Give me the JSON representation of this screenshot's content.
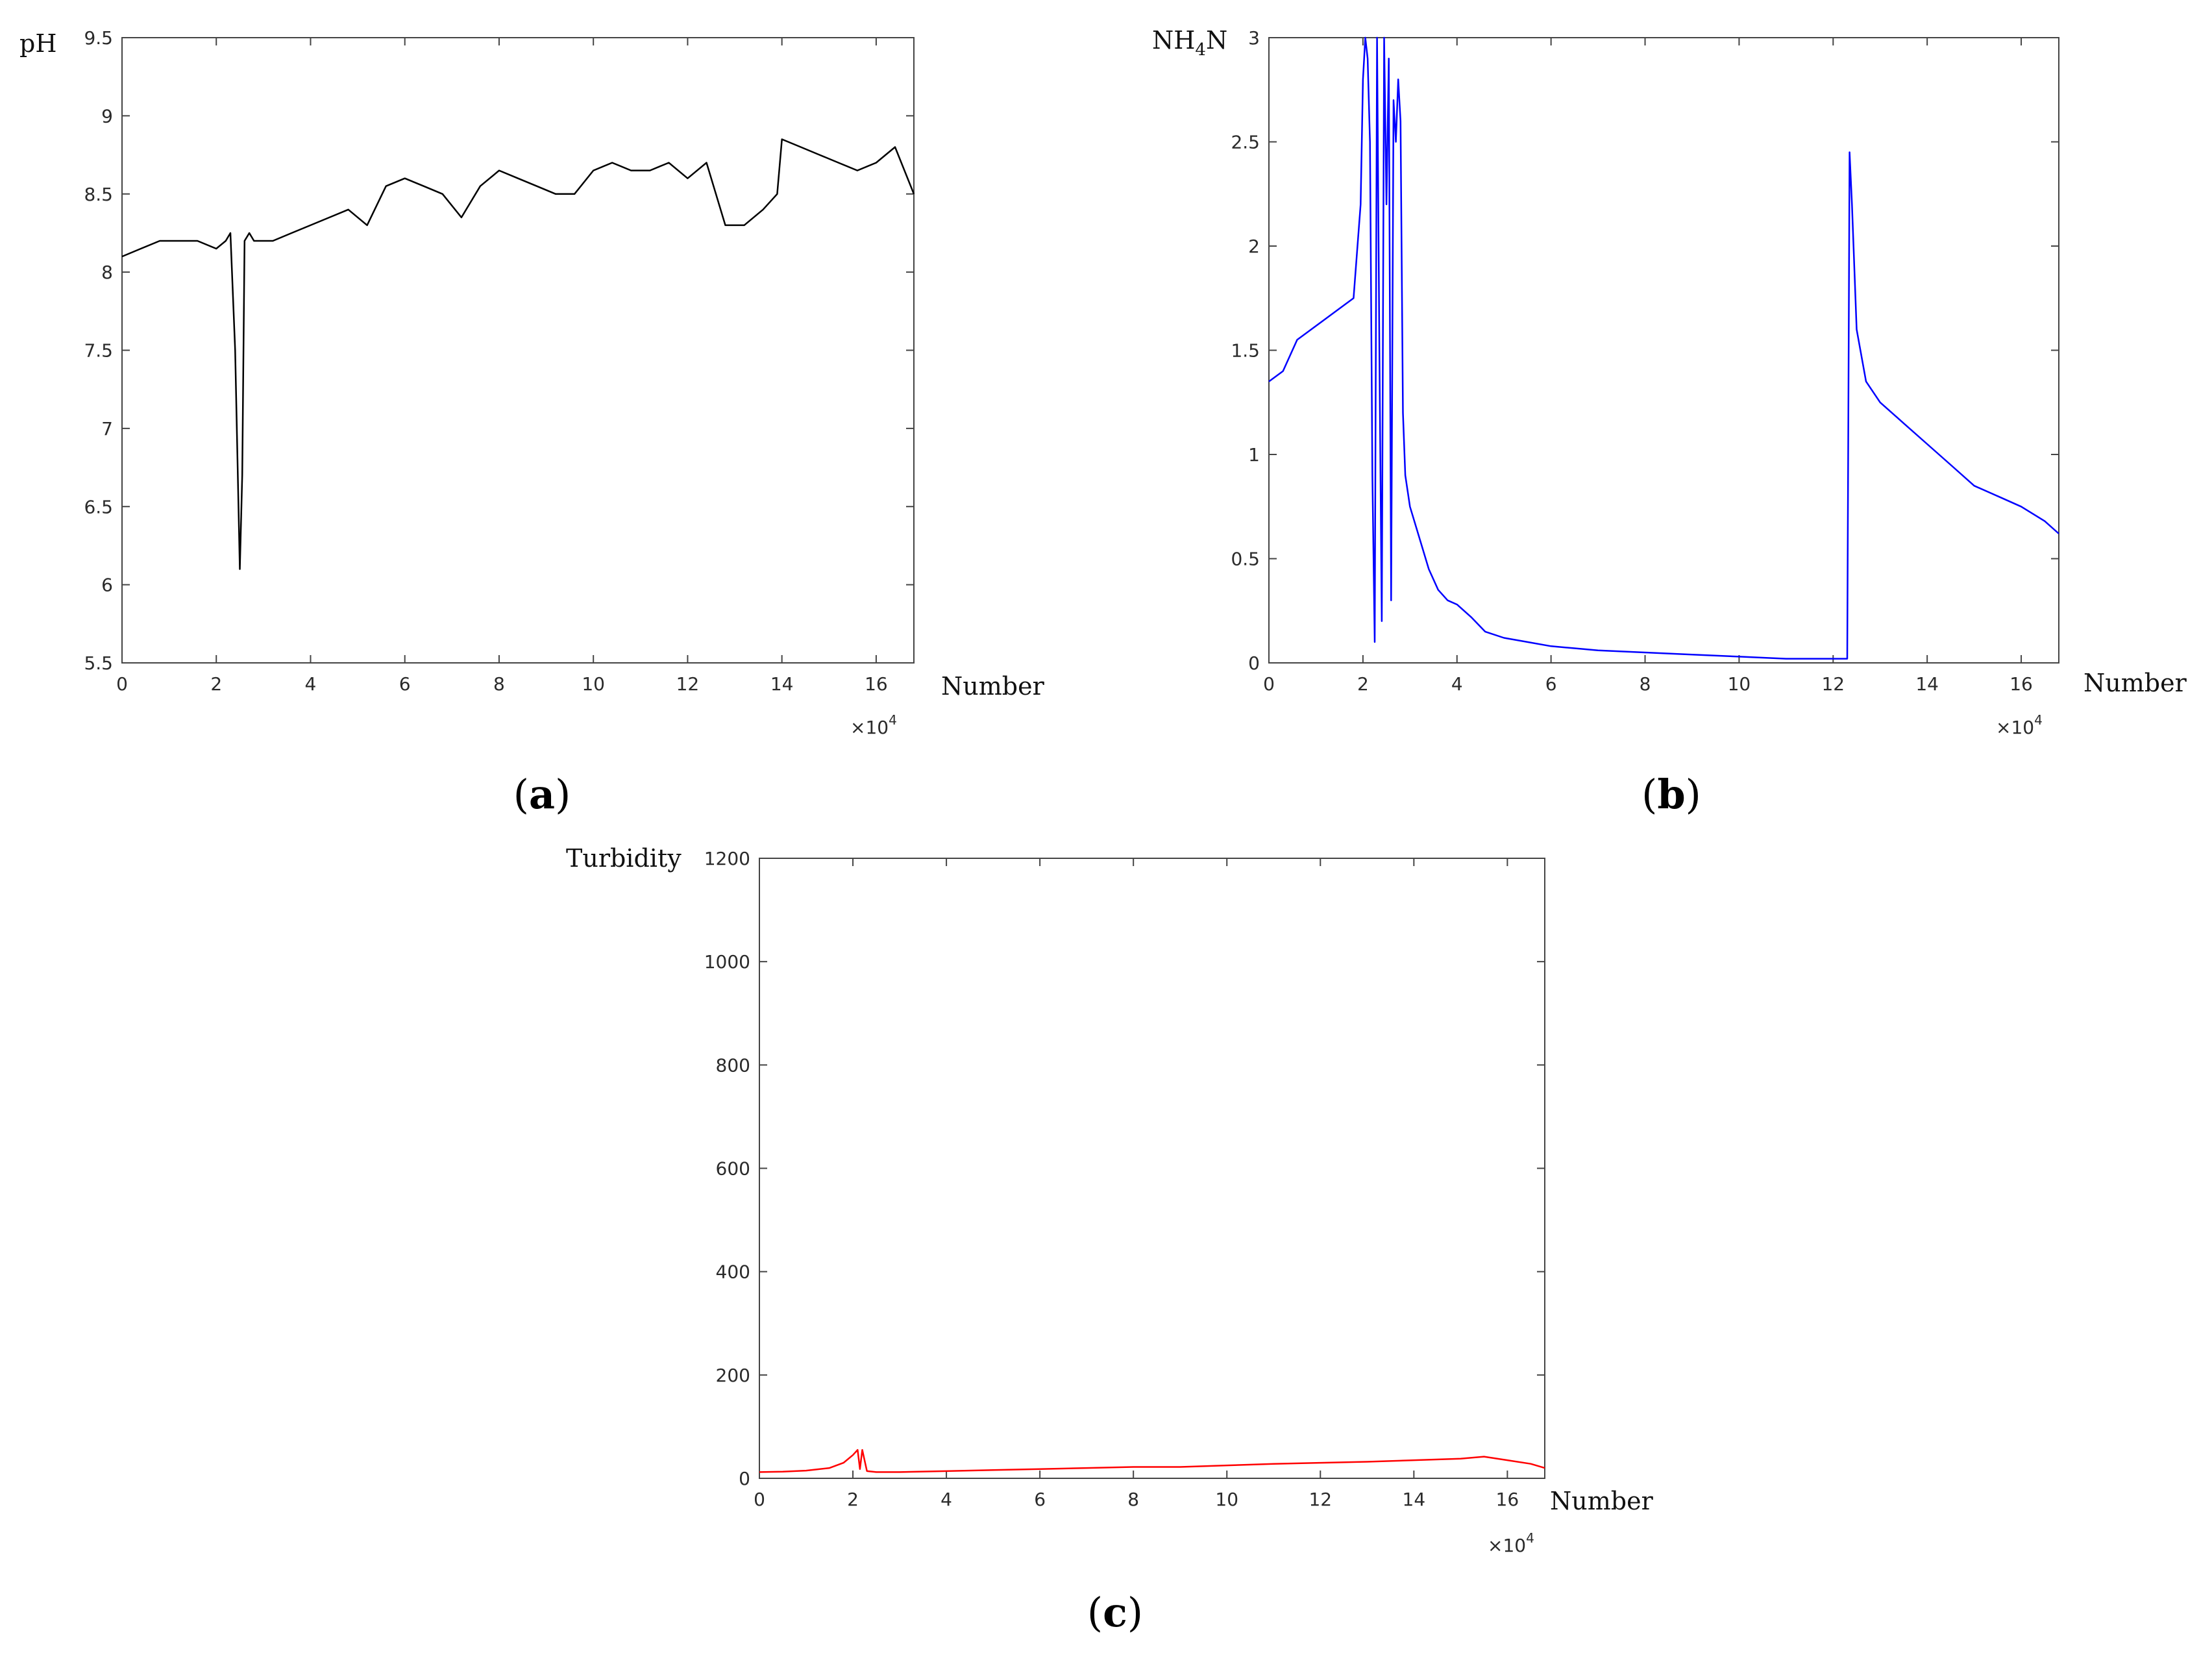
{
  "chart_data": [
    {
      "id": "a",
      "type": "line",
      "panel_label": "a",
      "ylabel": "pH",
      "xlabel": "Number",
      "x_multiplier": "×10",
      "x_exponent": "4",
      "xlim": [
        0,
        16.8
      ],
      "ylim": [
        5.5,
        9.5
      ],
      "xticks": [
        0,
        2,
        4,
        6,
        8,
        10,
        12,
        14,
        16
      ],
      "xtick_labels": [
        "0",
        "2",
        "4",
        "6",
        "8",
        "10",
        "12",
        "14",
        "16"
      ],
      "yticks": [
        5.5,
        6,
        6.5,
        7,
        7.5,
        8,
        8.5,
        9,
        9.5
      ],
      "ytick_labels": [
        "5.5",
        "6",
        "6.5",
        "7",
        "7.5",
        "8",
        "8.5",
        "9",
        "9.5"
      ],
      "color": "#000000",
      "series": [
        {
          "name": "pH",
          "x": [
            0,
            0.4,
            0.8,
            1.2,
            1.6,
            2.0,
            2.2,
            2.3,
            2.4,
            2.45,
            2.5,
            2.55,
            2.6,
            2.7,
            2.8,
            3.2,
            3.6,
            4.0,
            4.4,
            4.8,
            5.2,
            5.6,
            6.0,
            6.4,
            6.8,
            7.2,
            7.6,
            8.0,
            8.4,
            8.8,
            9.2,
            9.6,
            10.0,
            10.4,
            10.8,
            11.2,
            11.6,
            12.0,
            12.4,
            12.8,
            13.2,
            13.6,
            13.9,
            14.0,
            14.4,
            14.8,
            15.2,
            15.6,
            16.0,
            16.4,
            16.8
          ],
          "y": [
            8.1,
            8.15,
            8.2,
            8.2,
            8.2,
            8.15,
            8.2,
            8.25,
            7.5,
            6.8,
            6.1,
            6.7,
            8.2,
            8.25,
            8.2,
            8.2,
            8.25,
            8.3,
            8.35,
            8.4,
            8.3,
            8.55,
            8.6,
            8.55,
            8.5,
            8.35,
            8.55,
            8.65,
            8.6,
            8.55,
            8.5,
            8.5,
            8.65,
            8.7,
            8.65,
            8.65,
            8.7,
            8.6,
            8.7,
            8.3,
            8.3,
            8.4,
            8.5,
            8.85,
            8.8,
            8.75,
            8.7,
            8.65,
            8.7,
            8.8,
            8.5
          ]
        }
      ]
    },
    {
      "id": "b",
      "type": "line",
      "panel_label": "b",
      "ylabel": "NH",
      "ylabel_sub": "4",
      "ylabel_tail": "N",
      "xlabel": "Number",
      "x_multiplier": "×10",
      "x_exponent": "4",
      "xlim": [
        0,
        16.8
      ],
      "ylim": [
        0,
        3
      ],
      "xticks": [
        0,
        2,
        4,
        6,
        8,
        10,
        12,
        14,
        16
      ],
      "xtick_labels": [
        "0",
        "2",
        "4",
        "6",
        "8",
        "10",
        "12",
        "14",
        "16"
      ],
      "yticks": [
        0,
        0.5,
        1,
        1.5,
        2,
        2.5,
        3
      ],
      "ytick_labels": [
        "0",
        "0.5",
        "1",
        "1.5",
        "2",
        "2.5",
        "3"
      ],
      "color": "#0000ff",
      "series": [
        {
          "name": "NH4N",
          "x": [
            0,
            0.3,
            0.6,
            0.9,
            1.2,
            1.5,
            1.8,
            1.95,
            2.0,
            2.05,
            2.1,
            2.15,
            2.2,
            2.25,
            2.3,
            2.35,
            2.4,
            2.45,
            2.5,
            2.55,
            2.6,
            2.65,
            2.7,
            2.75,
            2.8,
            2.85,
            2.9,
            3.0,
            3.2,
            3.4,
            3.6,
            3.8,
            4.0,
            4.3,
            4.6,
            5.0,
            5.5,
            6.0,
            6.5,
            7.0,
            8.0,
            9.0,
            10.0,
            11.0,
            12.0,
            12.3,
            12.35,
            12.4,
            12.5,
            12.7,
            13.0,
            13.5,
            14.0,
            14.5,
            15.0,
            15.5,
            16.0,
            16.5,
            16.8
          ],
          "y": [
            1.35,
            1.4,
            1.55,
            1.6,
            1.65,
            1.7,
            1.75,
            2.2,
            2.8,
            3.0,
            2.9,
            2.5,
            0.9,
            0.1,
            3.0,
            1.5,
            0.2,
            3.0,
            2.2,
            2.9,
            0.3,
            2.7,
            2.5,
            2.8,
            2.6,
            1.2,
            0.9,
            0.75,
            0.6,
            0.45,
            0.35,
            0.3,
            0.28,
            0.22,
            0.15,
            0.12,
            0.1,
            0.08,
            0.07,
            0.06,
            0.05,
            0.04,
            0.03,
            0.02,
            0.02,
            0.02,
            2.45,
            2.2,
            1.6,
            1.35,
            1.25,
            1.15,
            1.05,
            0.95,
            0.85,
            0.8,
            0.75,
            0.68,
            0.62
          ]
        }
      ]
    },
    {
      "id": "c",
      "type": "line",
      "panel_label": "c",
      "ylabel": "Turbidity",
      "xlabel": "Number",
      "x_multiplier": "×10",
      "x_exponent": "4",
      "xlim": [
        0,
        16.8
      ],
      "ylim": [
        0,
        1200
      ],
      "xticks": [
        0,
        2,
        4,
        6,
        8,
        10,
        12,
        14,
        16
      ],
      "xtick_labels": [
        "0",
        "2",
        "4",
        "6",
        "8",
        "10",
        "12",
        "14",
        "16"
      ],
      "yticks": [
        0,
        200,
        400,
        600,
        800,
        1000,
        1200
      ],
      "ytick_labels": [
        "0",
        "200",
        "400",
        "600",
        "800",
        "1000",
        "1200"
      ],
      "color": "#ff0000",
      "series": [
        {
          "name": "Turbidity",
          "x": [
            0,
            0.5,
            1.0,
            1.5,
            1.8,
            2.0,
            2.1,
            2.15,
            2.2,
            2.3,
            2.5,
            3.0,
            4.0,
            5.0,
            6.0,
            7.0,
            8.0,
            9.0,
            10.0,
            11.0,
            12.0,
            13.0,
            14.0,
            15.0,
            15.5,
            16.0,
            16.5,
            16.8
          ],
          "y": [
            12,
            13,
            15,
            20,
            30,
            45,
            55,
            18,
            55,
            14,
            12,
            12,
            14,
            16,
            18,
            20,
            22,
            22,
            25,
            28,
            30,
            32,
            35,
            38,
            42,
            35,
            28,
            20
          ]
        }
      ]
    }
  ]
}
